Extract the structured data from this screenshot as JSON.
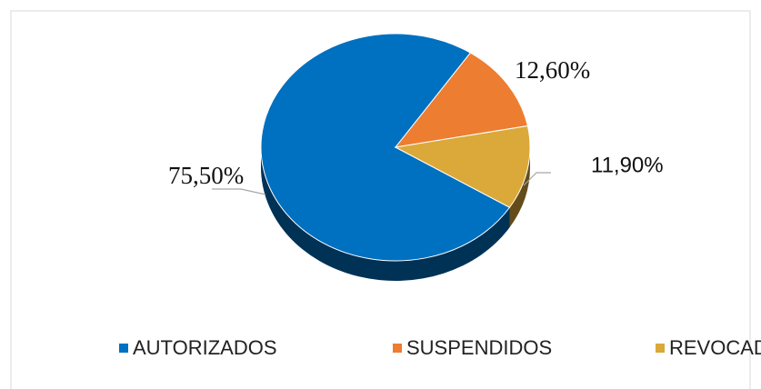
{
  "chart_data": {
    "type": "pie",
    "categories": [
      "AUTORIZADOS",
      "SUSPENDIDOS",
      "REVOCADOS"
    ],
    "values": [
      75.5,
      12.6,
      11.9
    ],
    "value_labels": [
      "75,50%",
      "12,60%",
      "11,90%"
    ],
    "colors": [
      "#0070c0",
      "#ed7d31",
      "#dba93a"
    ],
    "legend": "bottom"
  }
}
